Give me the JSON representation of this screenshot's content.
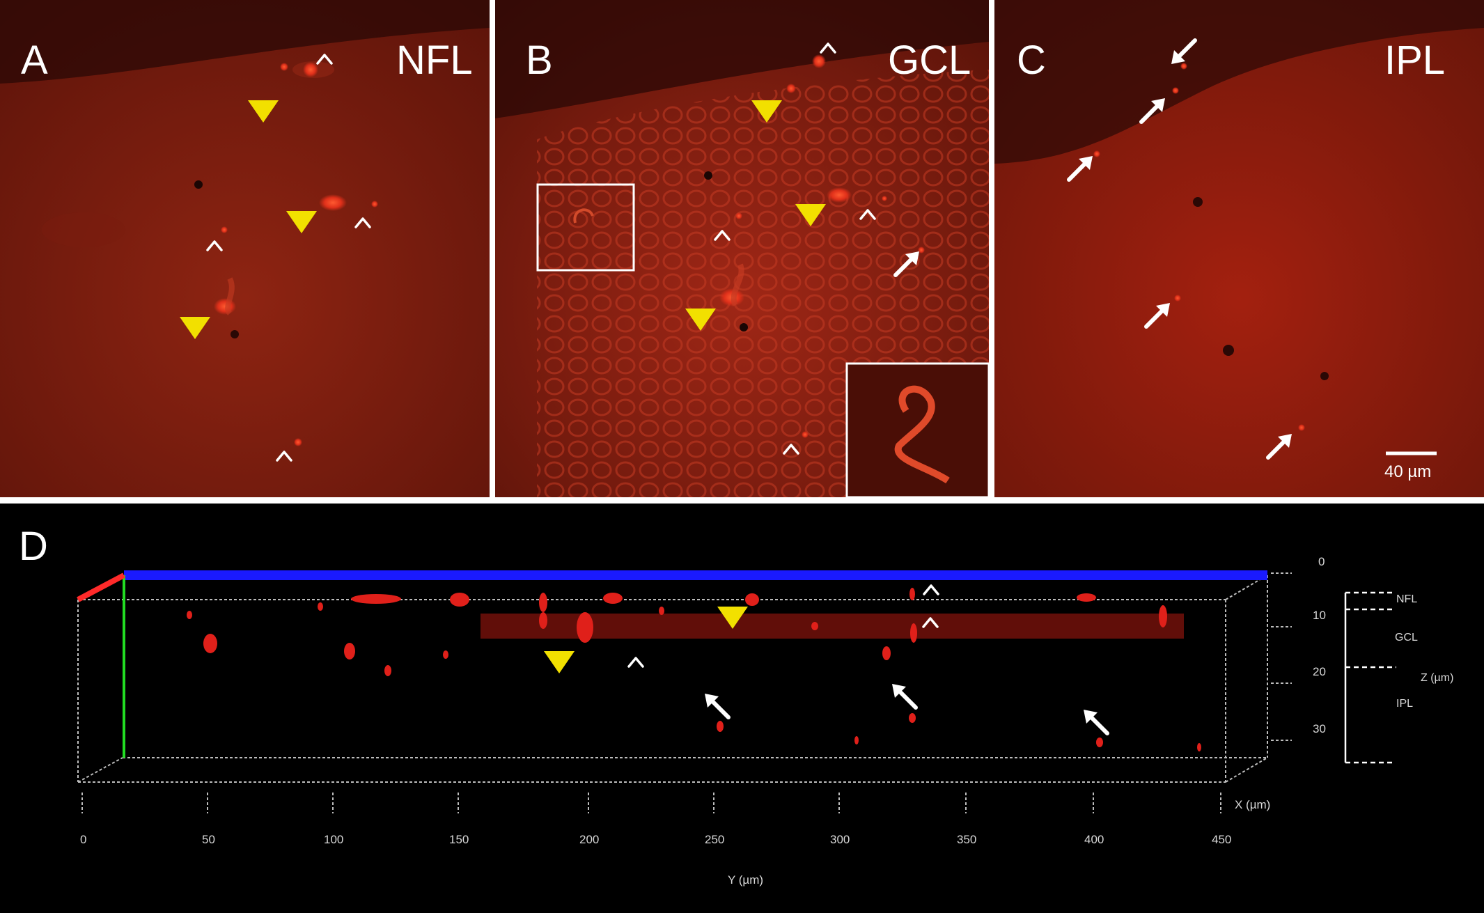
{
  "panels": {
    "a": {
      "letter": "A",
      "layer": "NFL"
    },
    "b": {
      "letter": "B",
      "layer": "GCL"
    },
    "c": {
      "letter": "C",
      "layer": "IPL",
      "scale_bar": "40 µm"
    },
    "d": {
      "letter": "D",
      "y_axis_label": "Y (µm)",
      "x_axis_label": "X (µm)",
      "z_axis_label": "Z (µm)",
      "y_ticks": [
        "0",
        "50",
        "100",
        "150",
        "200",
        "250",
        "300",
        "350",
        "400",
        "450"
      ],
      "z_ticks": [
        "0",
        "10",
        "20",
        "30"
      ],
      "layers": [
        "NFL",
        "GCL",
        "IPL"
      ]
    }
  },
  "colors": {
    "tissue": "#8a1a0d",
    "cell_signal": "#ff3a1a",
    "arrowhead": "#f2e000",
    "box_top": "#1a1aff",
    "box_axis": "#22dd22",
    "background_d": "#000000"
  },
  "markers": {
    "yellow_arrowhead": "filled-triangle-icon",
    "open_arrowhead": "open-chevron-icon",
    "arrow": "white-arrow-icon"
  }
}
